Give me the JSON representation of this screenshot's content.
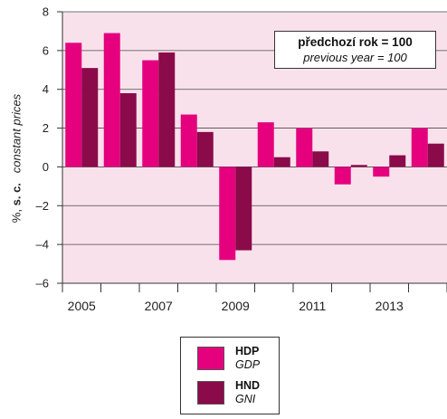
{
  "chart_data": {
    "type": "bar",
    "categories": [
      "2005",
      "2006",
      "2007",
      "2008",
      "2009",
      "2010",
      "2011",
      "2012",
      "2013",
      "2014"
    ],
    "x_tick_labels": [
      "2005",
      "2007",
      "2009",
      "2011",
      "2013"
    ],
    "series": [
      {
        "name": "HDP",
        "name_en": "GDP",
        "color": "#e5007e",
        "values": [
          6.4,
          6.9,
          5.5,
          2.7,
          -4.8,
          2.3,
          2.0,
          -0.9,
          -0.5,
          2.0
        ]
      },
      {
        "name": "HND",
        "name_en": "GNI",
        "color": "#8b0a4a",
        "values": [
          5.1,
          3.8,
          5.9,
          1.8,
          -4.3,
          0.5,
          0.8,
          0.1,
          0.6,
          1.2
        ]
      }
    ],
    "ylim": [
      -6,
      8
    ],
    "y_ticks": [
      -6,
      -4,
      -2,
      0,
      2,
      4,
      6,
      8
    ],
    "y_tick_labels": [
      "–6",
      "–4",
      "–2",
      "0",
      "2",
      "4",
      "6",
      "8"
    ],
    "ylabel_prefix": "%, ",
    "ylabel_bold": "s. c.",
    "ylabel_italic": "constant prices",
    "note_line1": "předchozí rok = 100",
    "note_line2": "previous year = 100",
    "legend": [
      {
        "label": "HDP",
        "label_en": "GDP"
      },
      {
        "label": "HND",
        "label_en": "GNI"
      }
    ],
    "plot_background": "#f9e1ec",
    "grid": true
  }
}
